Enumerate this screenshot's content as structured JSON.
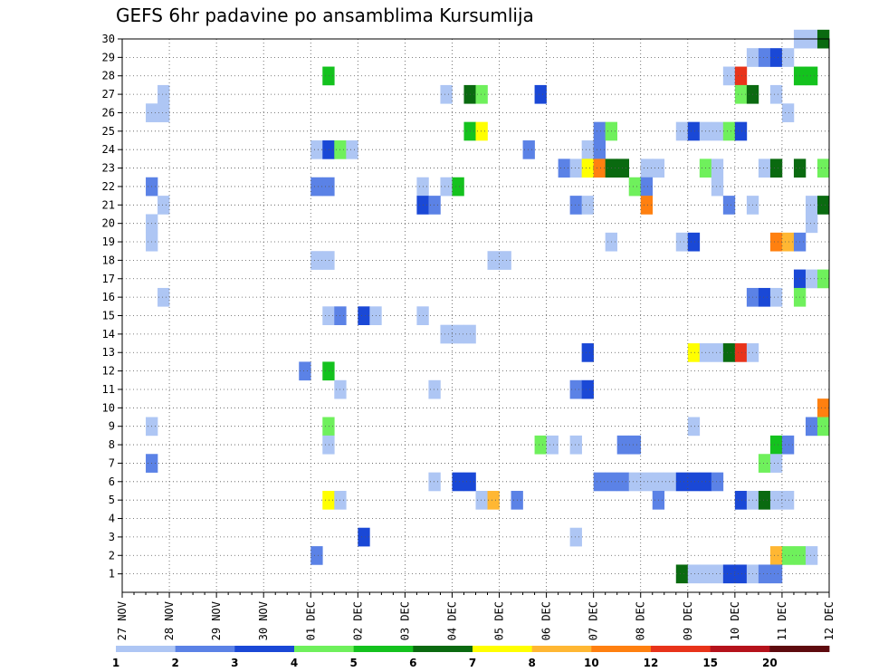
{
  "chart_data": {
    "type": "heatmap",
    "title": "GEFS 6hr padavine po ansamblima Kursumlija",
    "xlabel": "",
    "ylabel": "",
    "x_ticks": [
      "27 NOV",
      "28 NOV",
      "29 NOV",
      "30 NOV",
      "01 DEC",
      "02 DEC",
      "03 DEC",
      "04 DEC",
      "05 DEC",
      "06 DEC",
      "07 DEC",
      "08 DEC",
      "09 DEC",
      "10 DEC",
      "11 DEC",
      "12 DEC"
    ],
    "x_range_days": [
      0,
      15
    ],
    "y_ticks": [
      "1",
      "2",
      "3",
      "4",
      "5",
      "6",
      "7",
      "8",
      "9",
      "10",
      "11",
      "12",
      "13",
      "14",
      "15",
      "16",
      "17",
      "18",
      "19",
      "20",
      "21",
      "22",
      "23",
      "24",
      "25",
      "26",
      "27",
      "28",
      "29",
      "30"
    ],
    "y_range": [
      0,
      30
    ],
    "time_step_hours": 6,
    "grid": "dotted",
    "legend": {
      "position": "bottom",
      "labels": [
        "1",
        "2",
        "3",
        "4",
        "5",
        "6",
        "7",
        "8",
        "10",
        "12",
        "15",
        "20"
      ],
      "colors": [
        "#aec6f4",
        "#5b82e6",
        "#1a48d6",
        "#6ff05c",
        "#14c21e",
        "#0a6a10",
        "#ffff00",
        "#ffb733",
        "#ff8010",
        "#e8331a",
        "#b5121b",
        "#5e0a0e"
      ]
    },
    "cells": [
      [
        30,
        14.25,
        0
      ],
      [
        30,
        14.5,
        0
      ],
      [
        30,
        14.75,
        5
      ],
      [
        29,
        13.25,
        0
      ],
      [
        29,
        13.5,
        1
      ],
      [
        29,
        13.75,
        2
      ],
      [
        29,
        14.0,
        0
      ],
      [
        28,
        4.25,
        4
      ],
      [
        28,
        12.75,
        0
      ],
      [
        28,
        13.0,
        9
      ],
      [
        28,
        14.25,
        4
      ],
      [
        28,
        14.5,
        4
      ],
      [
        27,
        0.75,
        0
      ],
      [
        27,
        6.75,
        0
      ],
      [
        27,
        7.25,
        5
      ],
      [
        27,
        7.5,
        3
      ],
      [
        27,
        8.75,
        2
      ],
      [
        27,
        13.0,
        3
      ],
      [
        27,
        13.25,
        5
      ],
      [
        27,
        13.75,
        0
      ],
      [
        26,
        0.5,
        0
      ],
      [
        26,
        0.75,
        0
      ],
      [
        26,
        14.0,
        0
      ],
      [
        25,
        7.25,
        4
      ],
      [
        25,
        7.5,
        6
      ],
      [
        25,
        10.0,
        1
      ],
      [
        25,
        10.25,
        3
      ],
      [
        25,
        11.75,
        0
      ],
      [
        25,
        12.0,
        2
      ],
      [
        25,
        12.25,
        0
      ],
      [
        25,
        12.5,
        0
      ],
      [
        25,
        12.75,
        3
      ],
      [
        25,
        13.0,
        2
      ],
      [
        24,
        4.0,
        0
      ],
      [
        24,
        4.25,
        2
      ],
      [
        24,
        4.5,
        3
      ],
      [
        24,
        4.75,
        0
      ],
      [
        24,
        8.5,
        1
      ],
      [
        24,
        9.75,
        0
      ],
      [
        24,
        10.0,
        1
      ],
      [
        23,
        9.25,
        1
      ],
      [
        23,
        9.5,
        0
      ],
      [
        23,
        9.75,
        6
      ],
      [
        23,
        10.0,
        8
      ],
      [
        23,
        10.25,
        5
      ],
      [
        23,
        10.5,
        5
      ],
      [
        23,
        11.0,
        0
      ],
      [
        23,
        11.25,
        0
      ],
      [
        23,
        12.25,
        3
      ],
      [
        23,
        12.5,
        0
      ],
      [
        23,
        13.5,
        0
      ],
      [
        23,
        13.75,
        5
      ],
      [
        23,
        14.25,
        5
      ],
      [
        23,
        14.75,
        3
      ],
      [
        22,
        0.5,
        1
      ],
      [
        22,
        4.0,
        1
      ],
      [
        22,
        4.25,
        1
      ],
      [
        22,
        6.25,
        0
      ],
      [
        22,
        6.75,
        0
      ],
      [
        22,
        7.0,
        4
      ],
      [
        22,
        10.75,
        3
      ],
      [
        22,
        11.0,
        1
      ],
      [
        22,
        12.5,
        0
      ],
      [
        21,
        0.75,
        0
      ],
      [
        21,
        6.25,
        2
      ],
      [
        21,
        6.5,
        1
      ],
      [
        21,
        9.5,
        1
      ],
      [
        21,
        9.75,
        0
      ],
      [
        21,
        11.0,
        8
      ],
      [
        21,
        12.75,
        1
      ],
      [
        21,
        13.25,
        0
      ],
      [
        21,
        14.5,
        0
      ],
      [
        21,
        14.75,
        5
      ],
      [
        20,
        0.5,
        0
      ],
      [
        20,
        14.5,
        0
      ],
      [
        19,
        0.5,
        0
      ],
      [
        19,
        10.25,
        0
      ],
      [
        19,
        11.75,
        0
      ],
      [
        19,
        12.0,
        2
      ],
      [
        19,
        13.75,
        8
      ],
      [
        19,
        14.0,
        7
      ],
      [
        19,
        14.25,
        1
      ],
      [
        18,
        4.0,
        0
      ],
      [
        18,
        4.25,
        0
      ],
      [
        18,
        7.75,
        0
      ],
      [
        18,
        8.0,
        0
      ],
      [
        17,
        14.25,
        2
      ],
      [
        17,
        14.5,
        0
      ],
      [
        17,
        14.75,
        3
      ],
      [
        16,
        0.75,
        0
      ],
      [
        16,
        13.25,
        1
      ],
      [
        16,
        13.5,
        2
      ],
      [
        16,
        13.75,
        0
      ],
      [
        16,
        14.25,
        3
      ],
      [
        15,
        4.25,
        0
      ],
      [
        15,
        4.5,
        1
      ],
      [
        15,
        5.0,
        2
      ],
      [
        15,
        5.25,
        0
      ],
      [
        15,
        6.25,
        0
      ],
      [
        14,
        6.75,
        0
      ],
      [
        14,
        7.0,
        0
      ],
      [
        14,
        7.25,
        0
      ],
      [
        13,
        9.75,
        2
      ],
      [
        13,
        12.0,
        6
      ],
      [
        13,
        12.25,
        0
      ],
      [
        13,
        12.5,
        0
      ],
      [
        13,
        12.75,
        5
      ],
      [
        13,
        13.0,
        9
      ],
      [
        13,
        13.25,
        0
      ],
      [
        12,
        3.75,
        1
      ],
      [
        12,
        4.25,
        4
      ],
      [
        11,
        4.5,
        0
      ],
      [
        11,
        6.5,
        0
      ],
      [
        11,
        9.5,
        1
      ],
      [
        11,
        9.75,
        2
      ],
      [
        10,
        14.75,
        8
      ],
      [
        9,
        0.5,
        0
      ],
      [
        9,
        4.25,
        3
      ],
      [
        9,
        12.0,
        0
      ],
      [
        9,
        14.5,
        1
      ],
      [
        9,
        14.75,
        3
      ],
      [
        8,
        4.25,
        0
      ],
      [
        8,
        8.75,
        3
      ],
      [
        8,
        9.0,
        0
      ],
      [
        8,
        9.5,
        0
      ],
      [
        8,
        10.5,
        1
      ],
      [
        8,
        10.75,
        1
      ],
      [
        8,
        13.75,
        4
      ],
      [
        8,
        14.0,
        1
      ],
      [
        7,
        0.5,
        1
      ],
      [
        7,
        13.5,
        3
      ],
      [
        7,
        13.75,
        0
      ],
      [
        6,
        6.5,
        0
      ],
      [
        6,
        7.0,
        2
      ],
      [
        6,
        7.25,
        2
      ],
      [
        6,
        10.0,
        1
      ],
      [
        6,
        10.25,
        1
      ],
      [
        6,
        10.5,
        1
      ],
      [
        6,
        10.75,
        0
      ],
      [
        6,
        11.0,
        0
      ],
      [
        6,
        11.25,
        0
      ],
      [
        6,
        11.5,
        0
      ],
      [
        6,
        11.75,
        2
      ],
      [
        6,
        12.0,
        2
      ],
      [
        6,
        12.25,
        2
      ],
      [
        6,
        12.5,
        1
      ],
      [
        5,
        4.25,
        6
      ],
      [
        5,
        4.5,
        0
      ],
      [
        5,
        7.5,
        0
      ],
      [
        5,
        7.75,
        7
      ],
      [
        5,
        8.25,
        1
      ],
      [
        5,
        11.25,
        1
      ],
      [
        5,
        13.0,
        2
      ],
      [
        5,
        13.25,
        0
      ],
      [
        5,
        13.5,
        5
      ],
      [
        5,
        13.75,
        0
      ],
      [
        5,
        14.0,
        0
      ],
      [
        3,
        5.0,
        2
      ],
      [
        3,
        9.5,
        0
      ],
      [
        2,
        4.0,
        1
      ],
      [
        2,
        13.75,
        7
      ],
      [
        2,
        14.0,
        3
      ],
      [
        2,
        14.25,
        3
      ],
      [
        2,
        14.5,
        0
      ],
      [
        1,
        11.75,
        5
      ],
      [
        1,
        12.0,
        0
      ],
      [
        1,
        12.25,
        0
      ],
      [
        1,
        12.5,
        0
      ],
      [
        1,
        12.75,
        2
      ],
      [
        1,
        13.0,
        2
      ],
      [
        1,
        13.25,
        0
      ],
      [
        1,
        13.5,
        1
      ],
      [
        1,
        13.75,
        1
      ]
    ]
  }
}
